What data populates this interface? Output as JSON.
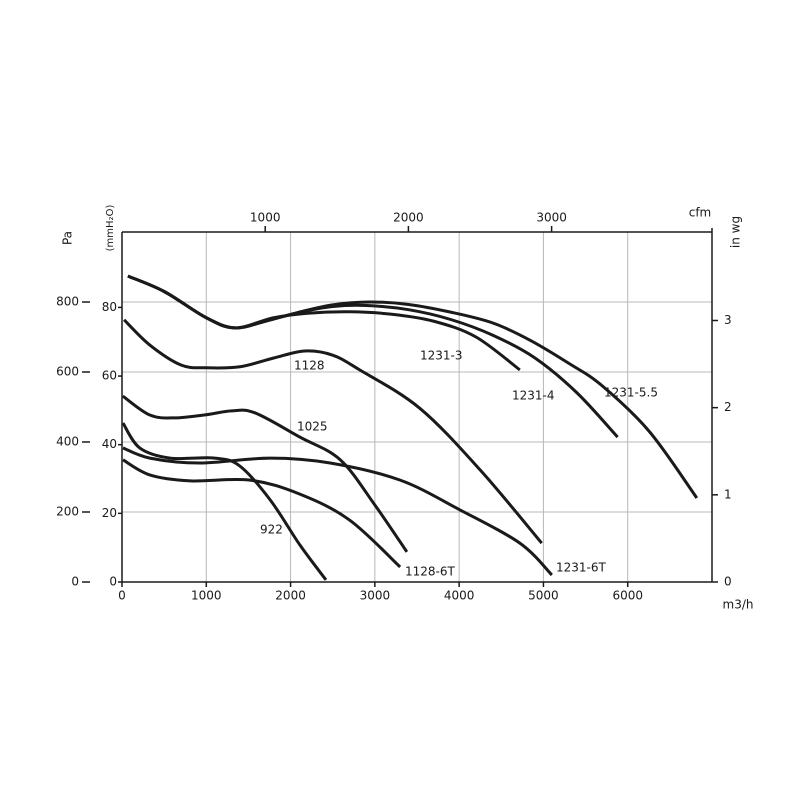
{
  "chart_data": {
    "type": "line",
    "x_label": "m3/h",
    "y_label": "Pa",
    "y2_label": "(mmH₂O)",
    "y3_label": "in wg",
    "x2_label": "cfm",
    "xlim": [
      0,
      7000
    ],
    "xticks": [
      0,
      1000,
      2000,
      3000,
      4000,
      5000,
      6000
    ],
    "ylim": [
      0,
      1000
    ],
    "yticks": [
      0,
      200,
      400,
      600,
      800
    ],
    "y2lim": [
      0,
      101.97
    ],
    "y2ticks": [
      0,
      20,
      40,
      60,
      80
    ],
    "y3lim": [
      0,
      4.015
    ],
    "y3ticks": [
      0,
      1,
      2,
      3
    ],
    "x2lim": [
      0,
      4120
    ],
    "x2ticks": [
      1000,
      2000,
      3000
    ],
    "grid": true,
    "color": "#1a1a1a",
    "series": [
      {
        "name": "1231-5.5",
        "x": [
          70,
          500,
          1000,
          1340,
          1700,
          2100,
          2500,
          2940,
          3400,
          3900,
          4400,
          4840,
          5300,
          5700,
          6260,
          6820
        ],
        "values": [
          874,
          830,
          755,
          726,
          745,
          771,
          792,
          800,
          793,
          771,
          740,
          691,
          625,
          560,
          429,
          240
        ]
      },
      {
        "name": "1231-4",
        "x": [
          70,
          500,
          1000,
          1340,
          1700,
          2100,
          2500,
          2900,
          3400,
          3900,
          4400,
          4900,
          5400,
          5880
        ],
        "values": [
          874,
          830,
          755,
          726,
          745,
          770,
          787,
          790,
          778,
          750,
          705,
          640,
          540,
          414
        ]
      },
      {
        "name": "1231-3",
        "x": [
          70,
          500,
          1000,
          1340,
          1800,
          2200,
          2700,
          3200,
          3700,
          4200,
          4720
        ],
        "values": [
          874,
          830,
          755,
          726,
          755,
          768,
          772,
          765,
          745,
          700,
          606
        ]
      },
      {
        "name": "1128",
        "x": [
          25,
          330,
          700,
          1000,
          1400,
          1800,
          2170,
          2500,
          2820,
          3530,
          4250,
          4980
        ],
        "values": [
          749,
          677,
          620,
          612,
          615,
          640,
          660,
          648,
          606,
          497,
          320,
          111
        ]
      },
      {
        "name": "1025",
        "x": [
          10,
          330,
          630,
          1000,
          1300,
          1580,
          2110,
          2590,
          3000,
          3380
        ],
        "values": [
          531,
          477,
          469,
          478,
          489,
          483,
          414,
          349,
          220,
          86
        ]
      },
      {
        "name": "1231-6T",
        "x": [
          12,
          330,
          925,
          1760,
          2470,
          3300,
          4010,
          4720,
          5100
        ],
        "values": [
          383,
          354,
          340,
          354,
          340,
          291,
          206,
          111,
          20
        ]
      },
      {
        "name": "1128-6T",
        "x": [
          12,
          330,
          810,
          1520,
          2110,
          2700,
          3300
        ],
        "values": [
          349,
          306,
          289,
          291,
          251,
          177,
          43
        ]
      },
      {
        "name": "922",
        "x": [
          12,
          210,
          570,
          1100,
          1400,
          1760,
          2110,
          2420
        ],
        "values": [
          454,
          383,
          354,
          354,
          331,
          234,
          106,
          6
        ]
      }
    ]
  }
}
